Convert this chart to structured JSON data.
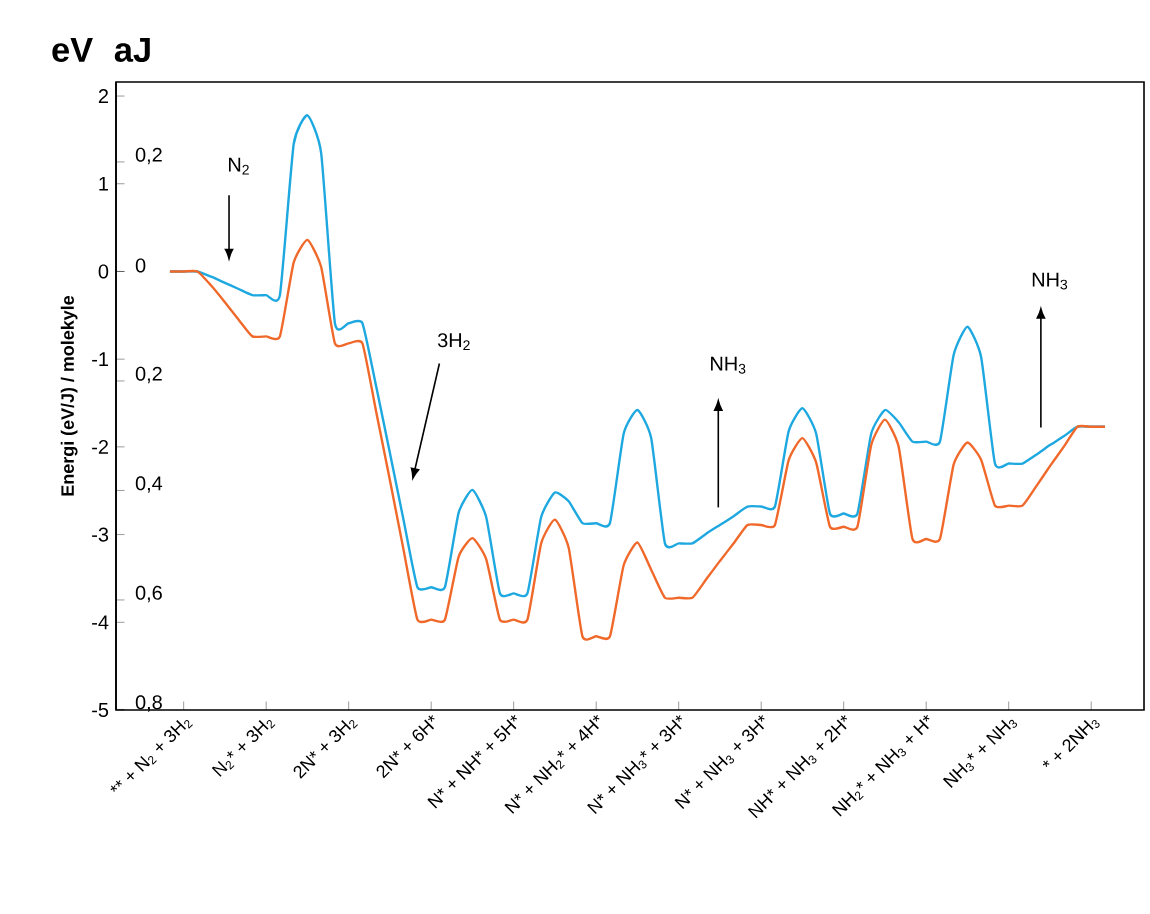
{
  "chart_data": {
    "type": "line",
    "ylabel": "Energi (eV/J) / molekyle",
    "annotations": [
      "eV",
      "aJ",
      "N$_{2}$",
      "3H$_{2}$",
      "NH$_{3}$",
      "NH$_{3}$"
    ],
    "categories": [
      null,
      "** + N$_{2}$ + 3H$_{2}$",
      null,
      null,
      null,
      null,
      null,
      "N$_{2}$* + 3H$_{2}$",
      null,
      null,
      null,
      null,
      null,
      "2N* + 3H$_{2}$",
      null,
      null,
      null,
      null,
      null,
      "2N* + 6H*",
      null,
      null,
      null,
      null,
      null,
      "N* + NH* + 5H*",
      null,
      null,
      null,
      null,
      null,
      "N* + NH$_{2}$* + 4H*",
      null,
      null,
      null,
      null,
      null,
      "N* + NH$_{3}$* + 3H*",
      null,
      null,
      null,
      null,
      null,
      "N* + NH$_{3}$ + 3H*",
      null,
      null,
      null,
      null,
      null,
      "NH* + NH$_{3}$ + 2H*",
      null,
      null,
      null,
      null,
      null,
      "NH$_{2}$* + NH$_{3}$ + H*",
      null,
      null,
      null,
      null,
      null,
      "NH$_{3}$* + NH$_{3}$",
      null,
      null,
      null,
      null,
      null,
      "* + 2NH$_{3}$",
      null
    ],
    "ylim": [
      -5,
      2.16
    ],
    "yticks": [
      -5,
      -4,
      -3,
      -2,
      -1,
      0,
      1,
      2
    ],
    "y2lim": [
      -0.801,
      0.346
    ],
    "y2ticks": [
      {
        "value": -0.8,
        "label": "0,8"
      },
      {
        "value": -0.6,
        "label": "0,6"
      },
      {
        "value": -0.4,
        "label": "0,4"
      },
      {
        "value": -0.2,
        "label": "0,2"
      },
      {
        "value": 0,
        "label": "0"
      },
      {
        "value": 0.2,
        "label": "0,2"
      }
    ],
    "series": [
      {
        "color": "#1ea8e0",
        "values": [
          0,
          0,
          0,
          -0.06,
          -0.13,
          -0.2,
          -0.27,
          -0.27,
          -0.27,
          1.45,
          1.78,
          1.35,
          -0.59,
          -0.59,
          -0.59,
          -1.31,
          -2.07,
          -2.84,
          -3.6,
          -3.6,
          -3.6,
          -2.75,
          -2.49,
          -2.8,
          -3.67,
          -3.67,
          -3.67,
          -2.8,
          -2.52,
          -2.62,
          -2.87,
          -2.87,
          -2.87,
          -1.85,
          -1.58,
          -1.9,
          -3.1,
          -3.1,
          -3.1,
          -2.99,
          -2.89,
          -2.79,
          -2.68,
          -2.68,
          -2.68,
          -1.82,
          -1.56,
          -1.85,
          -2.76,
          -2.76,
          -2.76,
          -1.85,
          -1.58,
          -1.72,
          -1.94,
          -1.94,
          -1.94,
          -0.95,
          -0.63,
          -0.98,
          -2.19,
          -2.19,
          -2.19,
          -2.09,
          -1.98,
          -1.88,
          -1.77,
          -1.77,
          -1.77
        ]
      },
      {
        "color": "#f0692a",
        "values": [
          0,
          0,
          0,
          -0.16,
          -0.35,
          -0.55,
          -0.74,
          -0.74,
          -0.74,
          0.1,
          0.36,
          0.05,
          -0.82,
          -0.82,
          -0.82,
          -1.6,
          -2.38,
          -3.18,
          -3.97,
          -3.97,
          -3.97,
          -3.25,
          -3.04,
          -3.28,
          -3.97,
          -3.97,
          -3.97,
          -3.1,
          -2.83,
          -3.15,
          -4.16,
          -4.16,
          -4.16,
          -3.35,
          -3.09,
          -3.4,
          -3.72,
          -3.72,
          -3.72,
          -3.51,
          -3.3,
          -3.1,
          -2.89,
          -2.89,
          -2.89,
          -2.15,
          -1.9,
          -2.18,
          -2.91,
          -2.91,
          -2.91,
          -1.98,
          -1.69,
          -2.0,
          -3.05,
          -3.05,
          -3.05,
          -2.2,
          -1.95,
          -2.15,
          -2.67,
          -2.67,
          -2.67,
          -2.45,
          -2.22,
          -2.0,
          -1.77,
          -1.77,
          -1.77
        ]
      }
    ]
  }
}
